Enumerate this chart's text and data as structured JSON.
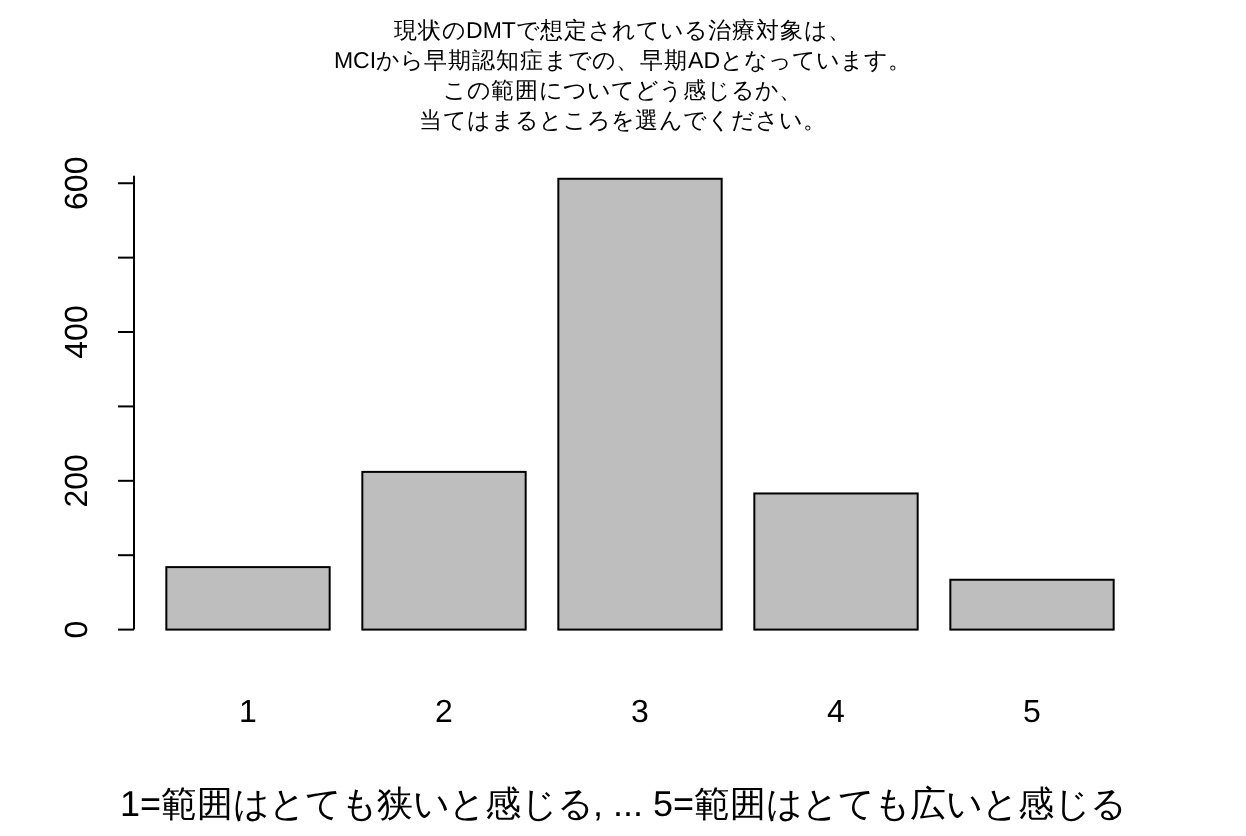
{
  "chart_data": {
    "type": "bar",
    "title": "現状のDMTで想定されている治療対象は、MCIから早期認知症までの、早期ADとなっています。この範囲についてどう感じるか、当てはまるところを選んでください。",
    "xlabel": "1=範囲はとても狭いと感じる, ... 5=範囲はとても広いと感じる",
    "categories": [
      "1",
      "2",
      "3",
      "4",
      "5"
    ],
    "values": [
      84,
      212,
      606,
      183,
      67
    ],
    "color": "#bebebe",
    "ylim": [
      0,
      610
    ],
    "yticks": [
      0,
      {
        "value": 100,
        "label": null
      },
      200,
      {
        "value": 300,
        "label": null
      },
      400,
      {
        "value": 500,
        "label": null
      },
      600
    ],
    "grid": false
  }
}
